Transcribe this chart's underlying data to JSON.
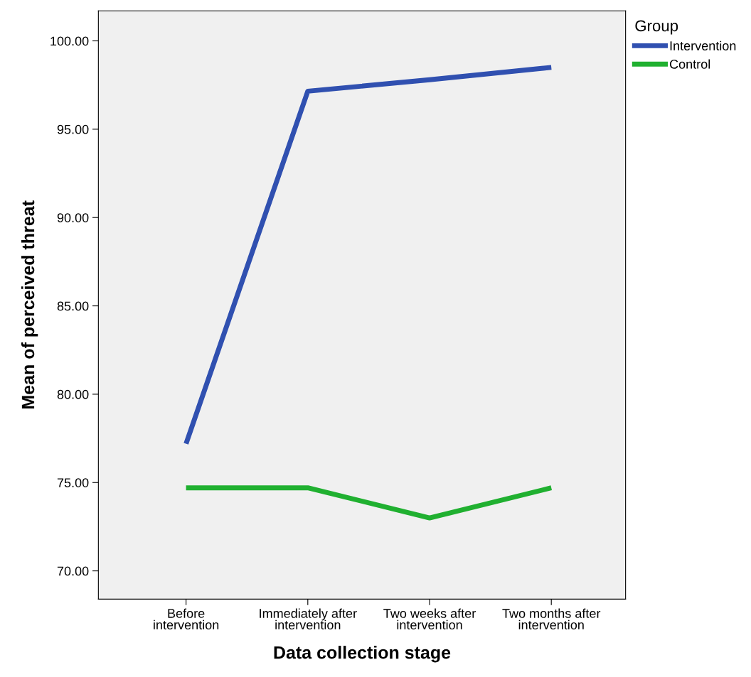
{
  "chart_data": {
    "type": "line",
    "xlabel": "Data collection stage",
    "ylabel": "Mean of perceived threat",
    "legend_title": "Group",
    "categories": [
      "Before\nintervention",
      "Immediately after\nintervention",
      "Two weeks after\nintervention",
      "Two months after\nintervention"
    ],
    "series": [
      {
        "name": "Intervention",
        "color": "#3050b0",
        "values": [
          77.2,
          97.15,
          97.8,
          98.5
        ]
      },
      {
        "name": "Control",
        "color": "#20b030",
        "values": [
          74.7,
          74.7,
          73.0,
          74.7
        ]
      }
    ],
    "ylim": [
      68.4,
      101.7
    ],
    "yticks": [
      {
        "value": 70,
        "label": "70.00"
      },
      {
        "value": 75,
        "label": "75.00"
      },
      {
        "value": 80,
        "label": "80.00"
      },
      {
        "value": 85,
        "label": "85.00"
      },
      {
        "value": 90,
        "label": "90.00"
      },
      {
        "value": 95,
        "label": "95.00"
      },
      {
        "value": 100,
        "label": "100.00"
      }
    ],
    "grid": false,
    "legend": "top right",
    "marker": "none",
    "line_style": "solid"
  }
}
